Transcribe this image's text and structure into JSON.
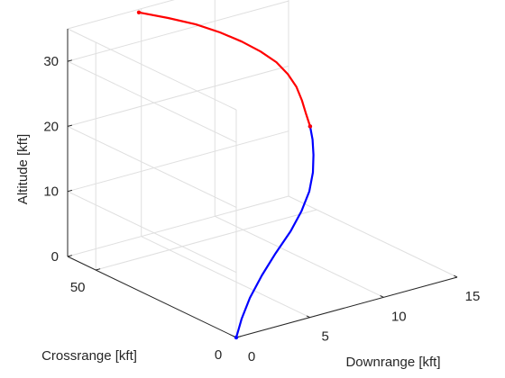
{
  "chart_data": {
    "type": "line3d",
    "title": "",
    "xlabel": "Downrange [kft]",
    "ylabel": "Crossrange [kft]",
    "zlabel": "Altitude [kft]",
    "xlim": [
      0,
      15
    ],
    "ylim": [
      0,
      60
    ],
    "zlim": [
      0,
      35
    ],
    "xticks": [
      "0",
      "5",
      "10",
      "15"
    ],
    "yticks": [
      "0",
      "50"
    ],
    "zticks": [
      "0",
      "10",
      "20",
      "30"
    ],
    "grid": true,
    "series": [
      {
        "color": "#0000ff",
        "x": [
          0,
          0.55,
          1.4,
          2.6,
          4.0,
          5.6,
          7.0,
          8.3,
          9.4,
          10.3,
          11.0,
          11.5
        ],
        "y": [
          0,
          1.0,
          2.5,
          4.5,
          7.0,
          10.0,
          13.5,
          17.5,
          22.0,
          26.5,
          30.5,
          34.0
        ],
        "z": [
          0,
          2.3,
          4.7,
          7.0,
          9.0,
          10.8,
          12.3,
          13.7,
          15.0,
          16.2,
          17.3,
          18.3
        ]
      },
      {
        "color": "#ff0000",
        "x": [
          11.5,
          11.7,
          11.9,
          12.0,
          11.9,
          11.6,
          11.0,
          10.2,
          9.2,
          8.0,
          6.5,
          4.8
        ],
        "y": [
          34.0,
          36.5,
          39.0,
          41.5,
          44.0,
          46.5,
          49.0,
          51.5,
          54.0,
          56.3,
          58.3,
          59.8
        ],
        "z": [
          18.3,
          19.6,
          21.0,
          22.5,
          24.0,
          25.5,
          27.0,
          28.5,
          30.0,
          31.5,
          33.0,
          34.6
        ]
      }
    ]
  }
}
